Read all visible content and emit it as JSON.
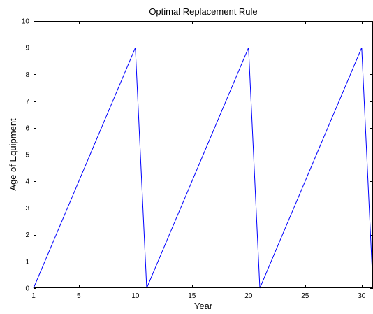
{
  "chart_data": {
    "type": "line",
    "title": "Optimal Replacement Rule",
    "xlabel": "Year",
    "ylabel": "Age of Equipment",
    "xlim": [
      1,
      31
    ],
    "ylim": [
      0,
      10
    ],
    "xticks": [
      1,
      5,
      10,
      15,
      20,
      25,
      30
    ],
    "yticks": [
      0,
      1,
      2,
      3,
      4,
      5,
      6,
      7,
      8,
      9,
      10
    ],
    "grid": false,
    "legend": "none",
    "series": [
      {
        "color": "#0000ff",
        "x": [
          1,
          2,
          3,
          4,
          5,
          6,
          7,
          8,
          9,
          10,
          11,
          12,
          13,
          14,
          15,
          16,
          17,
          18,
          19,
          20,
          21,
          22,
          23,
          24,
          25,
          26,
          27,
          28,
          29,
          30,
          31
        ],
        "y": [
          0,
          1,
          2,
          3,
          4,
          5,
          6,
          7,
          8,
          9,
          0,
          1,
          2,
          3,
          4,
          5,
          6,
          7,
          8,
          9,
          0,
          1,
          2,
          3,
          4,
          5,
          6,
          7,
          8,
          9,
          0
        ]
      }
    ]
  }
}
